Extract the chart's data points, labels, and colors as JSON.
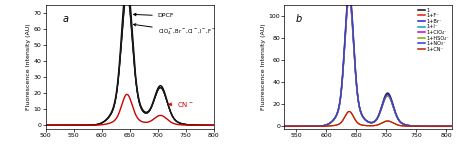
{
  "panel_a": {
    "label": "a",
    "ylabel": "Fluorescence Intensity (AU)",
    "xlim": [
      500,
      800
    ],
    "ylim": [
      -2,
      75
    ],
    "yticks": [
      0,
      10,
      20,
      30,
      40,
      50,
      60,
      70
    ],
    "xticks": [
      500,
      550,
      600,
      650,
      700,
      750,
      800
    ],
    "peak1_mu": 645,
    "peak2_mu": 705
  },
  "panel_b": {
    "label": "b",
    "ylabel": "Fluorescence Intensity (AU)",
    "xlim": [
      530,
      810
    ],
    "ylim": [
      -2,
      110
    ],
    "yticks": [
      0,
      20,
      40,
      60,
      80,
      100
    ],
    "xticks": [
      550,
      600,
      650,
      700,
      750,
      800
    ],
    "peak1_mu": 638,
    "peak2_mu": 702,
    "legend": [
      {
        "label": "1",
        "color": "#111111"
      },
      {
        "label": "1+F⁻",
        "color": "#dd2200"
      },
      {
        "label": "1+Br⁻",
        "color": "#2222cc"
      },
      {
        "label": "1+I⁻",
        "color": "#00aaaa"
      },
      {
        "label": "1+ClO₄⁻",
        "color": "#cc00cc"
      },
      {
        "label": "1+HSO₄⁻",
        "color": "#88aa00"
      },
      {
        "label": "1+NO₃⁻",
        "color": "#3333ee"
      },
      {
        "label": "1+CN⁻",
        "color": "#bb2200"
      }
    ]
  },
  "bg": "#ffffff"
}
